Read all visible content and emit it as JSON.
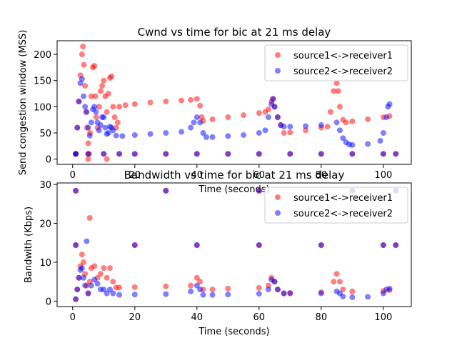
{
  "chart_data": [
    {
      "type": "scatter",
      "title": "Cwnd vs time for bic at 21 ms delay",
      "xlabel": "Time (seconds)",
      "ylabel": "Send congestion window (MSS)",
      "xlim": [
        -5,
        109
      ],
      "ylim": [
        -10,
        226
      ],
      "xticks": [
        0,
        20,
        40,
        60,
        80,
        100
      ],
      "yticks": [
        0,
        50,
        100,
        150,
        200
      ],
      "legend": "top-right",
      "series": [
        {
          "name": "source1<->receiver1",
          "color": "#ff0000",
          "points": [
            [
              1,
              10
            ],
            [
              1.5,
              60
            ],
            [
              2,
              110
            ],
            [
              2.5,
              160
            ],
            [
              3,
              200
            ],
            [
              3.3,
              215
            ],
            [
              3.6,
              180
            ],
            [
              4,
              140
            ],
            [
              4.3,
              90
            ],
            [
              4.6,
              60
            ],
            [
              5,
              30
            ],
            [
              5.3,
              10
            ],
            [
              5.6,
              50
            ],
            [
              6,
              120
            ],
            [
              6.5,
              175
            ],
            [
              7,
              178
            ],
            [
              7.3,
              120
            ],
            [
              7.6,
              80
            ],
            [
              8,
              60
            ],
            [
              8.5,
              100
            ],
            [
              9,
              130
            ],
            [
              9.5,
              140
            ],
            [
              10,
              150
            ],
            [
              10.5,
              120
            ],
            [
              11,
              90
            ],
            [
              11.5,
              125
            ],
            [
              12,
              155
            ],
            [
              12.5,
              158
            ],
            [
              13,
              100
            ],
            [
              13.5,
              80
            ],
            [
              14,
              60
            ],
            [
              14.5,
              70
            ],
            [
              15,
              100
            ],
            [
              17,
              103
            ],
            [
              20,
              105
            ],
            [
              25,
              108
            ],
            [
              30,
              110
            ],
            [
              35,
              112
            ],
            [
              38,
              113
            ],
            [
              40,
              115
            ],
            [
              41,
              102
            ],
            [
              41.5,
              80
            ],
            [
              42,
              73
            ],
            [
              45,
              76
            ],
            [
              50,
              80
            ],
            [
              55,
              84
            ],
            [
              60,
              88
            ],
            [
              62,
              90
            ],
            [
              63,
              95
            ],
            [
              64,
              110
            ],
            [
              64.5,
              115
            ],
            [
              65,
              100
            ],
            [
              66,
              80
            ],
            [
              67,
              65
            ],
            [
              68,
              50
            ],
            [
              70,
              51
            ],
            [
              75,
              55
            ],
            [
              80,
              60
            ],
            [
              82,
              62
            ],
            [
              83,
              90
            ],
            [
              84,
              130
            ],
            [
              85,
              145
            ],
            [
              85.5,
              130
            ],
            [
              86,
              100
            ],
            [
              87,
              75
            ],
            [
              88,
              70
            ],
            [
              90,
              72
            ],
            [
              95,
              76
            ],
            [
              100,
              80
            ],
            [
              102,
              82
            ],
            [
              1,
              10
            ],
            [
              5,
              10
            ],
            [
              10,
              10
            ],
            [
              15,
              10
            ],
            [
              20,
              10
            ],
            [
              30,
              10
            ],
            [
              40,
              10
            ],
            [
              50,
              10
            ],
            [
              60,
              10
            ],
            [
              70,
              10
            ],
            [
              80,
              10
            ],
            [
              90,
              10
            ],
            [
              100,
              10
            ],
            [
              104,
              10
            ],
            [
              5,
              0
            ],
            [
              11,
              0
            ]
          ]
        },
        {
          "name": "source2<->receiver2",
          "color": "#0000ff",
          "points": [
            [
              1,
              10
            ],
            [
              1.5,
              60
            ],
            [
              2,
              110
            ],
            [
              2.5,
              145
            ],
            [
              3,
              153
            ],
            [
              3.5,
              120
            ],
            [
              4,
              100
            ],
            [
              4.5,
              90
            ],
            [
              5,
              60
            ],
            [
              5.5,
              45
            ],
            [
              6,
              70
            ],
            [
              6.5,
              95
            ],
            [
              7,
              100
            ],
            [
              7.5,
              90
            ],
            [
              8,
              70
            ],
            [
              8.5,
              55
            ],
            [
              9,
              65
            ],
            [
              9.5,
              80
            ],
            [
              10,
              80
            ],
            [
              10.5,
              60
            ],
            [
              11,
              48
            ],
            [
              11.5,
              50
            ],
            [
              12,
              62
            ],
            [
              12.5,
              60
            ],
            [
              13,
              55
            ],
            [
              14,
              45
            ],
            [
              16,
              44
            ],
            [
              20,
              46
            ],
            [
              25,
              48
            ],
            [
              30,
              50
            ],
            [
              35,
              52
            ],
            [
              38,
              60
            ],
            [
              39,
              70
            ],
            [
              40,
              80
            ],
            [
              41,
              70
            ],
            [
              42,
              50
            ],
            [
              43,
              42
            ],
            [
              45,
              42
            ],
            [
              50,
              44
            ],
            [
              55,
              46
            ],
            [
              60,
              50
            ],
            [
              62,
              55
            ],
            [
              63,
              80
            ],
            [
              64,
              105
            ],
            [
              64.5,
              115
            ],
            [
              65,
              100
            ],
            [
              66,
              80
            ],
            [
              67,
              65
            ],
            [
              68,
              62
            ],
            [
              70,
              62
            ],
            [
              75,
              63
            ],
            [
              80,
              65
            ],
            [
              85,
              70
            ],
            [
              86,
              55
            ],
            [
              87,
              40
            ],
            [
              88,
              32
            ],
            [
              89,
              28
            ],
            [
              90,
              27
            ],
            [
              95,
              29
            ],
            [
              99,
              35
            ],
            [
              100,
              50
            ],
            [
              101,
              80
            ],
            [
              101.5,
              100
            ],
            [
              102,
              105
            ],
            [
              1,
              10
            ],
            [
              5,
              10
            ],
            [
              10,
              10
            ],
            [
              15,
              10
            ],
            [
              20,
              10
            ],
            [
              30,
              10
            ],
            [
              40,
              10
            ],
            [
              50,
              10
            ],
            [
              60,
              10
            ],
            [
              70,
              10
            ],
            [
              80,
              10
            ],
            [
              90,
              10
            ],
            [
              100,
              10
            ],
            [
              104,
              10
            ]
          ]
        }
      ]
    },
    {
      "type": "scatter",
      "title": "Bandwidth vs time for bic at 21 ms delay",
      "xlabel": "Time (seconds)",
      "ylabel": "Bandwith (Kbps)",
      "xlim": [
        -5,
        109
      ],
      "ylim": [
        -1.4,
        30.4
      ],
      "xticks": [
        0,
        20,
        40,
        60,
        80,
        100
      ],
      "yticks": [
        0,
        10,
        20,
        30
      ],
      "legend": "top-right",
      "series": [
        {
          "name": "source1<->receiver1",
          "color": "#ff0000",
          "points": [
            [
              1,
              14.4
            ],
            [
              20,
              14.4
            ],
            [
              40,
              14.4
            ],
            [
              60,
              14.4
            ],
            [
              80,
              14.4
            ],
            [
              100,
              14.4
            ],
            [
              104,
              14.4
            ],
            [
              1,
              28.4
            ],
            [
              30,
              28.4
            ],
            [
              60,
              28.4
            ],
            [
              90,
              28.4
            ],
            [
              104,
              28.4
            ],
            [
              5.5,
              21.4
            ],
            [
              1,
              0.5
            ],
            [
              1.5,
              3
            ],
            [
              2,
              6
            ],
            [
              2.5,
              9
            ],
            [
              3,
              12
            ],
            [
              3.5,
              10
            ],
            [
              4,
              7
            ],
            [
              4.5,
              4
            ],
            [
              5,
              2
            ],
            [
              5.5,
              5
            ],
            [
              6,
              8.5
            ],
            [
              7,
              9
            ],
            [
              8,
              6
            ],
            [
              9,
              7
            ],
            [
              10,
              8.5
            ],
            [
              11,
              6
            ],
            [
              12,
              8.5
            ],
            [
              13,
              5
            ],
            [
              14,
              3.5
            ],
            [
              15,
              3.5
            ],
            [
              20,
              3.6
            ],
            [
              30,
              3.8
            ],
            [
              38,
              4
            ],
            [
              40,
              6
            ],
            [
              41,
              5
            ],
            [
              42,
              3
            ],
            [
              45,
              3
            ],
            [
              50,
              3.2
            ],
            [
              60,
              3.4
            ],
            [
              63,
              4
            ],
            [
              64,
              6
            ],
            [
              65,
              5
            ],
            [
              66,
              3
            ],
            [
              68,
              2
            ],
            [
              70,
              2.1
            ],
            [
              80,
              2.3
            ],
            [
              84,
              5
            ],
            [
              85,
              7
            ],
            [
              86,
              5
            ],
            [
              87,
              3
            ],
            [
              90,
              2.5
            ],
            [
              100,
              2.6
            ],
            [
              102,
              2.8
            ]
          ]
        },
        {
          "name": "source2<->receiver2",
          "color": "#0000ff",
          "points": [
            [
              1,
              14.4
            ],
            [
              20,
              14.4
            ],
            [
              40,
              14.4
            ],
            [
              60,
              14.4
            ],
            [
              80,
              14.4
            ],
            [
              100,
              14.4
            ],
            [
              104,
              14.4
            ],
            [
              1,
              28.4
            ],
            [
              30,
              28.4
            ],
            [
              60,
              28.4
            ],
            [
              90,
              28.4
            ],
            [
              104,
              28.4
            ],
            [
              4.5,
              15.4
            ],
            [
              1,
              0.5
            ],
            [
              1.5,
              3
            ],
            [
              2,
              6
            ],
            [
              2.5,
              8
            ],
            [
              3,
              8.5
            ],
            [
              3.5,
              6
            ],
            [
              4,
              4
            ],
            [
              5,
              2
            ],
            [
              6,
              4
            ],
            [
              7,
              5.5
            ],
            [
              8,
              4.5
            ],
            [
              9,
              3
            ],
            [
              10,
              3
            ],
            [
              11,
              2
            ],
            [
              12,
              3
            ],
            [
              13,
              2
            ],
            [
              15,
              1.6
            ],
            [
              20,
              1.7
            ],
            [
              30,
              1.8
            ],
            [
              38,
              2.5
            ],
            [
              40,
              4
            ],
            [
              41,
              3
            ],
            [
              42,
              1.6
            ],
            [
              45,
              1.6
            ],
            [
              50,
              1.7
            ],
            [
              60,
              1.9
            ],
            [
              63,
              3
            ],
            [
              64,
              5.5
            ],
            [
              65,
              5
            ],
            [
              66,
              3
            ],
            [
              68,
              2
            ],
            [
              70,
              2
            ],
            [
              80,
              2
            ],
            [
              85,
              2.5
            ],
            [
              86,
              2
            ],
            [
              87,
              1.2
            ],
            [
              90,
              1
            ],
            [
              95,
              1.1
            ],
            [
              100,
              2
            ],
            [
              101,
              3
            ],
            [
              102,
              3.2
            ]
          ]
        }
      ]
    }
  ]
}
